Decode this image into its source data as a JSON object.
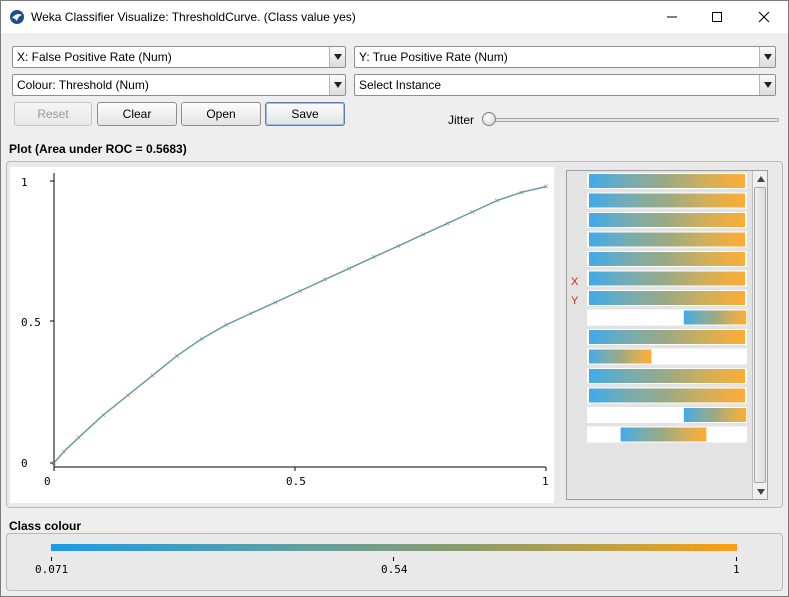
{
  "window": {
    "title": "Weka Classifier Visualize: ThresholdCurve. (Class value yes)"
  },
  "controls": {
    "x_axis_select": "X: False Positive Rate (Num)",
    "y_axis_select": "Y: True Positive Rate (Num)",
    "colour_select": "Colour: Threshold (Num)",
    "instance_select": "Select Instance",
    "reset_label": "Reset",
    "clear_label": "Clear",
    "open_label": "Open",
    "save_label": "Save",
    "jitter_label": "Jitter",
    "jitter_value": 0
  },
  "plot": {
    "title": "Plot (Area under ROC = 0.5683)",
    "x_ticks": [
      "0",
      "0.5",
      "1"
    ],
    "y_ticks": [
      "0",
      "0.5",
      "1"
    ]
  },
  "attribute_panel": {
    "x_marker": "X",
    "y_marker": "Y"
  },
  "class_colour": {
    "title": "Class colour",
    "labels": [
      "0.071",
      "0.54",
      "1"
    ],
    "gradient_colors": [
      "#1e9be6",
      "#5e9ea3",
      "#8a9a6c",
      "#c9a13c",
      "#ff9d10"
    ]
  },
  "colors": {
    "curve": "#6b9aa3",
    "curve_low": "#9a9a5c",
    "accent_red": "#d81e1e"
  },
  "chart_data": {
    "type": "line",
    "title": "Plot (Area under ROC = 0.5683)",
    "xlabel": "",
    "ylabel": "",
    "xlim": [
      0,
      1
    ],
    "ylim": [
      0,
      1
    ],
    "grid": false,
    "series": [
      {
        "x": [
          0,
          0.02,
          0.05,
          0.1,
          0.15,
          0.2,
          0.25,
          0.3,
          0.35,
          0.4,
          0.45,
          0.5,
          0.55,
          0.6,
          0.65,
          0.7,
          0.75,
          0.8,
          0.85,
          0.9,
          0.95,
          1.0
        ],
        "y": [
          0,
          0.04,
          0.09,
          0.17,
          0.24,
          0.31,
          0.38,
          0.44,
          0.49,
          0.53,
          0.57,
          0.61,
          0.65,
          0.69,
          0.73,
          0.77,
          0.81,
          0.85,
          0.89,
          0.93,
          0.96,
          0.98
        ]
      }
    ]
  }
}
